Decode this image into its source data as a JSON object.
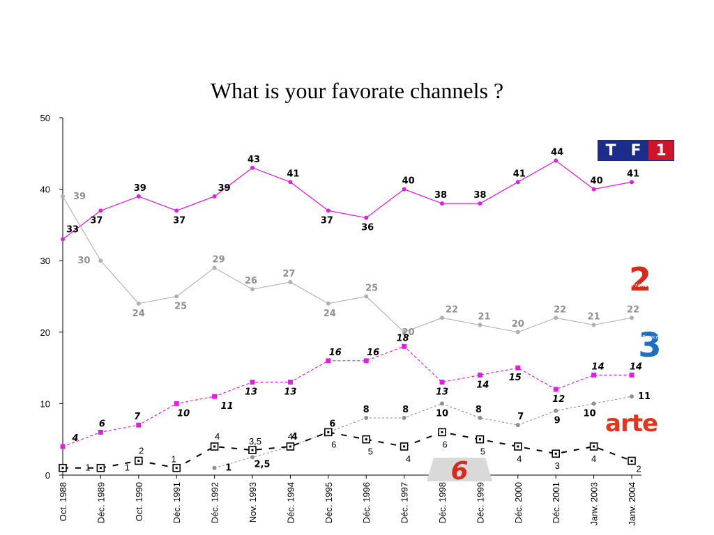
{
  "title": "What is your favorate channels ?",
  "logos": {
    "tf1": [
      "T",
      "F",
      "1"
    ],
    "france2": "2",
    "france2_sub": "France",
    "france3": "3",
    "france3_sub": "France",
    "arte": "arte",
    "m6": "6"
  },
  "colors": {
    "tf1": "#e020e0",
    "france2": "#b0b0b0",
    "france3": "#e020e0",
    "m6": "#909090",
    "arte": "#000000",
    "tf1_logo_blue": "#1b2c8a",
    "tf1_logo_red": "#d0142a",
    "france2_logo": "#d52b1e",
    "france3_logo": "#1f6fc1",
    "m6_logo": "#d52b1e"
  },
  "chart_data": {
    "type": "line",
    "ylim": [
      0,
      50
    ],
    "yticks": [
      0,
      10,
      20,
      30,
      40,
      50
    ],
    "categories": [
      "Oct. 1988",
      "Déc. 1989",
      "Oct. 1990",
      "Déc. 1991",
      "Déc. 1992",
      "Nov. 1993",
      "Déc. 1994",
      "Déc. 1995",
      "Déc. 1996",
      "Déc. 1997",
      "Déc. 1998",
      "Déc. 1999",
      "Déc. 2000",
      "Déc. 2001",
      "Janv. 2003",
      "Janv. 2004"
    ],
    "series": [
      {
        "key": "tf1",
        "values": [
          33,
          37,
          39,
          37,
          39,
          43,
          41,
          37,
          36,
          40,
          38,
          38,
          41,
          44,
          40,
          41
        ],
        "labels": [
          "33",
          "37",
          "39",
          "37",
          "39",
          "43",
          "41",
          "37",
          "36",
          "40",
          "38",
          "38",
          "41",
          "44",
          "40",
          "41"
        ]
      },
      {
        "key": "france2",
        "values": [
          39,
          30,
          24,
          25,
          29,
          26,
          27,
          24,
          25,
          20,
          22,
          21,
          20,
          22,
          21,
          22
        ],
        "labels": [
          "39",
          "30",
          "24",
          "25",
          "29",
          "26",
          "27",
          "24",
          "25",
          "20",
          "22",
          "21",
          "20",
          "22",
          "21",
          "22"
        ]
      },
      {
        "key": "france3",
        "values": [
          4,
          6,
          7,
          10,
          11,
          13,
          13,
          16,
          16,
          18,
          13,
          14,
          15,
          12,
          14,
          14
        ],
        "labels": [
          "4",
          "6",
          "7",
          "10",
          "11",
          "13",
          "13",
          "16",
          "16",
          "18",
          "13",
          "14",
          "15",
          "12",
          "14",
          "14"
        ]
      },
      {
        "key": "m6",
        "values": [
          null,
          null,
          null,
          null,
          1,
          2.5,
          4,
          6,
          8,
          8,
          10,
          8,
          7,
          9,
          10,
          11
        ],
        "labels": [
          null,
          null,
          null,
          null,
          "1",
          "2,5",
          "4",
          "6",
          "8",
          "8",
          "10",
          "8",
          "7",
          "9",
          "10",
          "11"
        ]
      },
      {
        "key": "arte",
        "values": [
          1,
          1,
          2,
          1,
          4,
          3.5,
          4,
          6,
          5,
          4,
          6,
          5,
          4,
          3,
          4,
          2
        ],
        "labels": [
          "1",
          "1",
          "2",
          "1",
          "4",
          "3,5",
          "4",
          "6",
          "5",
          "4",
          "6",
          "5",
          "4",
          "3",
          "4",
          "2"
        ]
      }
    ]
  }
}
